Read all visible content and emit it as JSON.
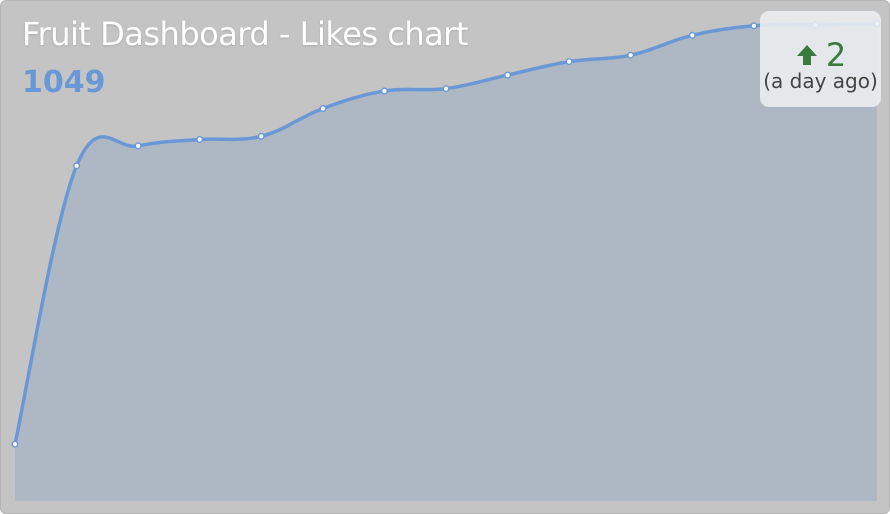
{
  "widget": {
    "title": "Fruit Dashboard - Likes chart",
    "total": "1049",
    "change": {
      "value": "2",
      "direction": "up",
      "icon": "arrow-up-icon",
      "label": "(a day ago)"
    }
  },
  "colors": {
    "background": "#c4c4c4",
    "area_fill": "#aeb8c5",
    "line": "#6a98d6",
    "point_fill": "#ffffff",
    "title_text": "#ffffff",
    "total_text": "#6a98d6",
    "change_text": "#3a7a3e"
  },
  "chart_data": {
    "type": "area",
    "title": "Fruit Dashboard - Likes chart",
    "xlabel": "",
    "ylabel": "",
    "grid": false,
    "legend": "none",
    "x_axis_labels": false,
    "y_axis_labels": false,
    "x": [
      1,
      2,
      3,
      4,
      5,
      6,
      7,
      8,
      9,
      10,
      11,
      12,
      13,
      14,
      15
    ],
    "values": [
      520,
      870,
      895,
      903,
      907,
      942,
      964,
      967,
      984,
      1001,
      1009,
      1034,
      1046,
      1047,
      1049
    ],
    "ylim": [
      480,
      1052
    ]
  }
}
